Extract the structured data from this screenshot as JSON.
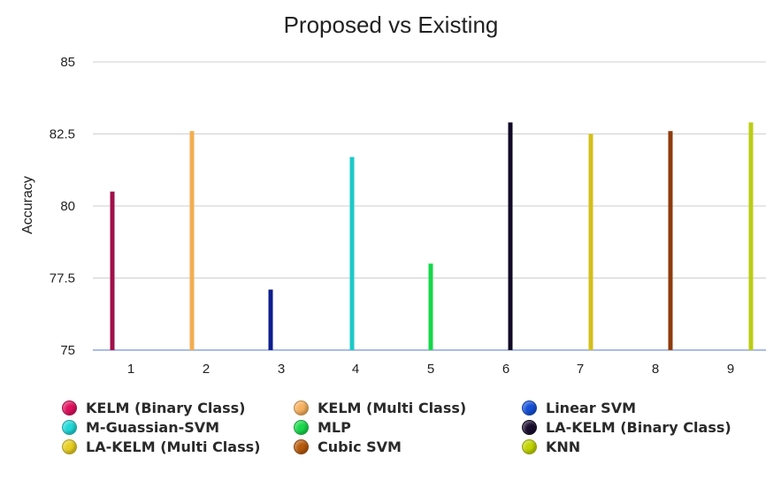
{
  "chart_data": {
    "type": "bar",
    "title": "Proposed vs Existing",
    "ylabel": "Accuracy",
    "xlabel": "",
    "ylim": [
      75,
      85
    ],
    "yticks": [
      "85",
      "82.5",
      "80",
      "77.5",
      "75"
    ],
    "ytick_values": [
      85,
      82.5,
      80,
      77.5,
      75
    ],
    "categories": [
      "1",
      "2",
      "3",
      "4",
      "5",
      "6",
      "7",
      "8",
      "9"
    ],
    "grid": true,
    "legend_position": "bottom",
    "series": [
      {
        "name": "KELM (Binary Class)",
        "color": "#a0104a",
        "legend_color": "#e0115f",
        "index": 0,
        "value": 80.5
      },
      {
        "name": "KELM (Multi Class)",
        "color": "#f2ae52",
        "legend_color": "#f7b15e",
        "index": 1,
        "value": 82.6
      },
      {
        "name": "Linear SVM",
        "color": "#0d1e8e",
        "legend_color": "#1450d8",
        "index": 2,
        "value": 77.1
      },
      {
        "name": "M-Guassian-SVM",
        "color": "#1ec8c8",
        "legend_color": "#20d8d8",
        "index": 3,
        "value": 81.7
      },
      {
        "name": "MLP",
        "color": "#14d84a",
        "legend_color": "#18d84a",
        "index": 4,
        "value": 78.0
      },
      {
        "name": "LA-KELM (Binary Class)",
        "color": "#100a26",
        "legend_color": "#1a0d2e",
        "index": 5,
        "value": 82.9
      },
      {
        "name": "LA-KELM (Multi Class)",
        "color": "#d4bf1a",
        "legend_color": "#e8cf22",
        "index": 6,
        "value": 82.5
      },
      {
        "name": "Cubic SVM",
        "color": "#8e3a0c",
        "legend_color": "#b85a0c",
        "index": 7,
        "value": 82.6
      },
      {
        "name": "KNN",
        "color": "#bccc14",
        "legend_color": "#c2d400",
        "index": 8,
        "value": 82.9
      }
    ]
  }
}
